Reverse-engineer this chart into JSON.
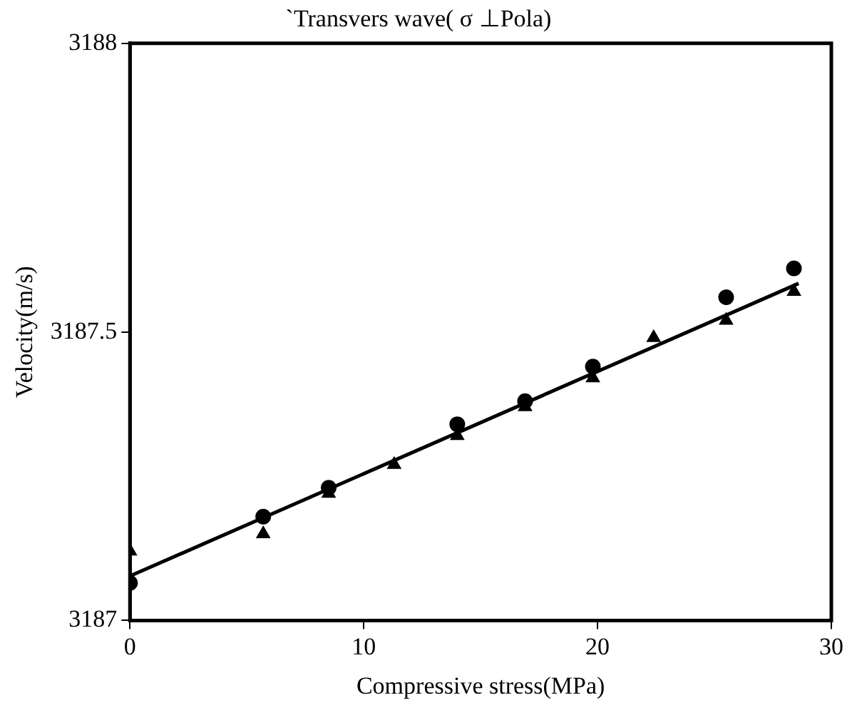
{
  "chart_data": {
    "type": "scatter",
    "title": "`Transvers wave( σ ⊥Pola)",
    "xlabel": "Compressive stress(MPa)",
    "ylabel": "Velocity(m/s)",
    "xlim": [
      0,
      30
    ],
    "xticks": [
      0,
      10,
      20,
      30
    ],
    "ylim": [
      3187,
      3188
    ],
    "yticks": [
      3187,
      3187.5,
      3188
    ],
    "grid": false,
    "legend": false,
    "series": [
      {
        "type": "scatter",
        "marker": "circle",
        "color": "#000000",
        "x": [
          0,
          5.7,
          8.5,
          14,
          16.9,
          19.8,
          25.5,
          28.4
        ],
        "values": [
          3187.065,
          3187.18,
          3187.23,
          3187.34,
          3187.38,
          3187.44,
          3187.56,
          3187.61
        ]
      },
      {
        "type": "scatter",
        "marker": "triangle",
        "color": "#000000",
        "x": [
          0,
          5.7,
          8.5,
          11.3,
          14,
          16.9,
          19.8,
          22.4,
          25.5,
          28.4
        ],
        "values": [
          3187.12,
          3187.15,
          3187.22,
          3187.27,
          3187.32,
          3187.37,
          3187.42,
          3187.49,
          3187.52,
          3187.57
        ]
      },
      {
        "type": "line",
        "marker": "none",
        "line_style": "solid",
        "color": "#000000",
        "x": [
          0,
          28.6
        ],
        "values": [
          3187.077,
          3187.584
        ]
      }
    ]
  }
}
